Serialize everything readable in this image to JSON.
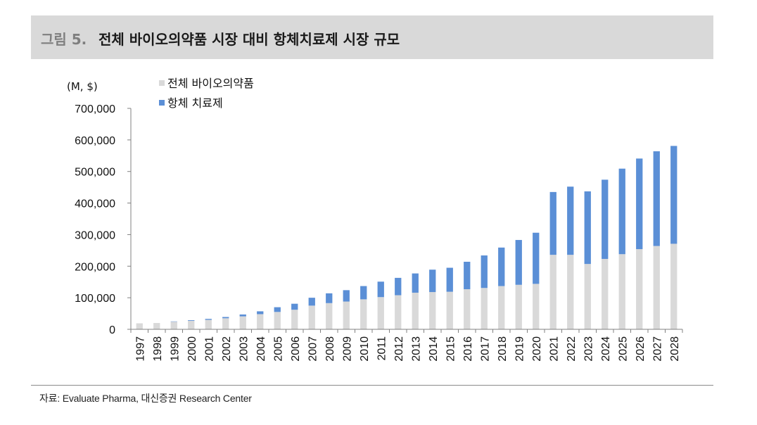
{
  "header": {
    "figure_label": "그림 5.",
    "title": "전체 바이오의약품 시장 대비 항체치료제 시장 규모"
  },
  "source": "자료: Evaluate Pharma, 대신증권 Research Center",
  "colors": {
    "total": "#d9d9d9",
    "antibody": "#5b8fd6",
    "title_bar": "#d9d9d9"
  },
  "chart_data": {
    "type": "bar",
    "stacked": true,
    "unit_label": "(M, $)",
    "categories": [
      "1997",
      "1998",
      "1999",
      "2000",
      "2001",
      "2002",
      "2003",
      "2004",
      "2005",
      "2006",
      "2007",
      "2008",
      "2009",
      "2010",
      "2011",
      "2012",
      "2013",
      "2014",
      "2015",
      "2016",
      "2017",
      "2018",
      "2019",
      "2020",
      "2021",
      "2022",
      "2023",
      "2024",
      "2025",
      "2026",
      "2027",
      "2028"
    ],
    "series": [
      {
        "name": "전체 바이오의약품",
        "values": [
          19000,
          20000,
          24000,
          27000,
          30000,
          35000,
          41000,
          48000,
          55000,
          62000,
          75000,
          83000,
          88000,
          95000,
          102000,
          108000,
          116000,
          118000,
          119000,
          127000,
          131000,
          137000,
          141000,
          144000,
          236000,
          236000,
          207000,
          223000,
          238000,
          254000,
          264000,
          271000
        ]
      },
      {
        "name": "항체 치료제",
        "values": [
          0,
          0,
          1000,
          2000,
          3000,
          4000,
          6000,
          9000,
          15000,
          19000,
          25000,
          31000,
          36000,
          42000,
          49000,
          55000,
          61000,
          71000,
          76000,
          87000,
          103000,
          122000,
          142000,
          162000,
          199000,
          216000,
          230000,
          251000,
          271000,
          287000,
          300000,
          310000
        ]
      }
    ],
    "ylim": [
      0,
      700000
    ],
    "yticks": [
      "0",
      "100,000",
      "200,000",
      "300,000",
      "400,000",
      "500,000",
      "600,000",
      "700,000"
    ],
    "ytick_values": [
      0,
      100000,
      200000,
      300000,
      400000,
      500000,
      600000,
      700000
    ],
    "legend_position": "top-left",
    "grid": false
  }
}
